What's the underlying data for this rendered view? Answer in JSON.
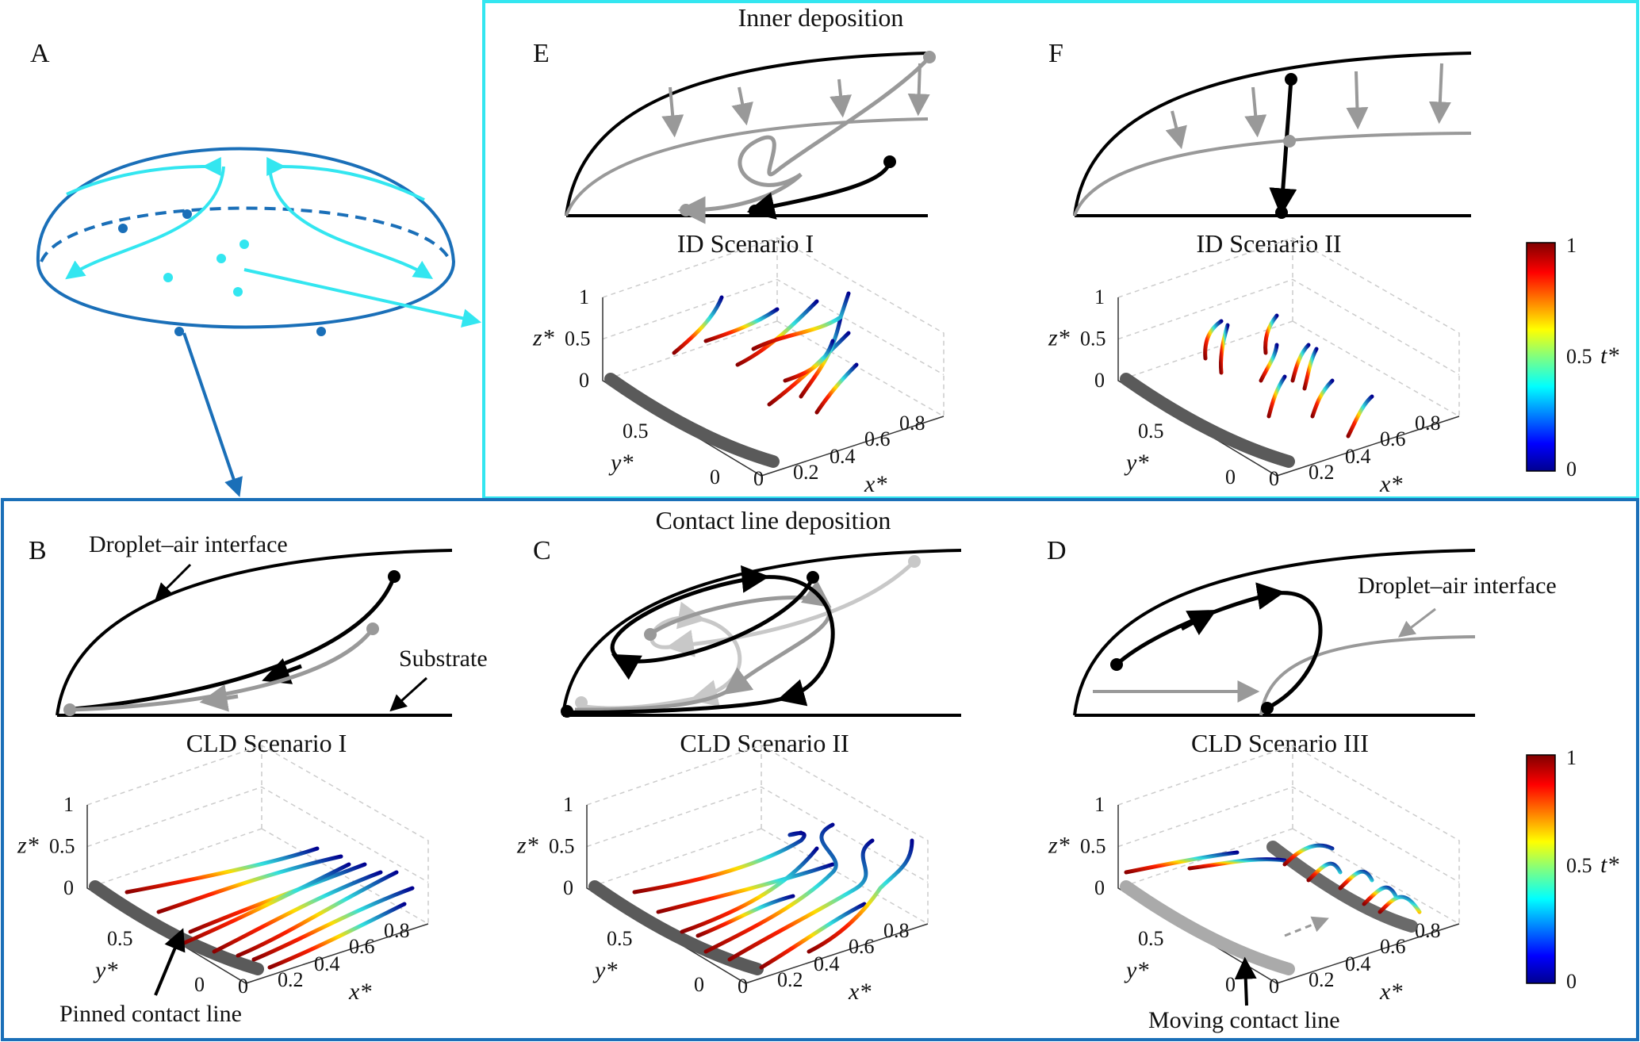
{
  "boxes": {
    "inner_title": "Inner deposition",
    "cld_title": "Contact line deposition"
  },
  "panels": {
    "A": "A",
    "B": "B",
    "C": "C",
    "D": "D",
    "E": "E",
    "F": "F"
  },
  "scenarios": {
    "E": "ID Scenario I",
    "F": "ID Scenario II",
    "B": "CLD Scenario I",
    "C": "CLD Scenario II",
    "D": "CLD Scenario III"
  },
  "annotations": {
    "interface_B": "Droplet–air interface",
    "substrate_B": "Substrate",
    "pinned": "Pinned contact line",
    "interface_D": "Droplet–air interface",
    "moving": "Moving contact line"
  },
  "axes": {
    "z_label": "z*",
    "y_label": "y*",
    "x_label": "x*",
    "z_ticks": [
      "0",
      "0.5",
      "1"
    ],
    "y_ticks": [
      "0",
      "0.5"
    ],
    "x_ticks": [
      "0",
      "0.2",
      "0.4",
      "0.6",
      "0.8"
    ]
  },
  "colorbar": {
    "label": "t*",
    "ticks": [
      "0",
      "0.5",
      "1"
    ]
  },
  "colors": {
    "cyan": "#33e6f0",
    "blue": "#1a6fb8",
    "black": "#000000",
    "gray": "#999999",
    "lightgray": "#c8c8c8",
    "cl_dark": "#5a5a5a"
  }
}
